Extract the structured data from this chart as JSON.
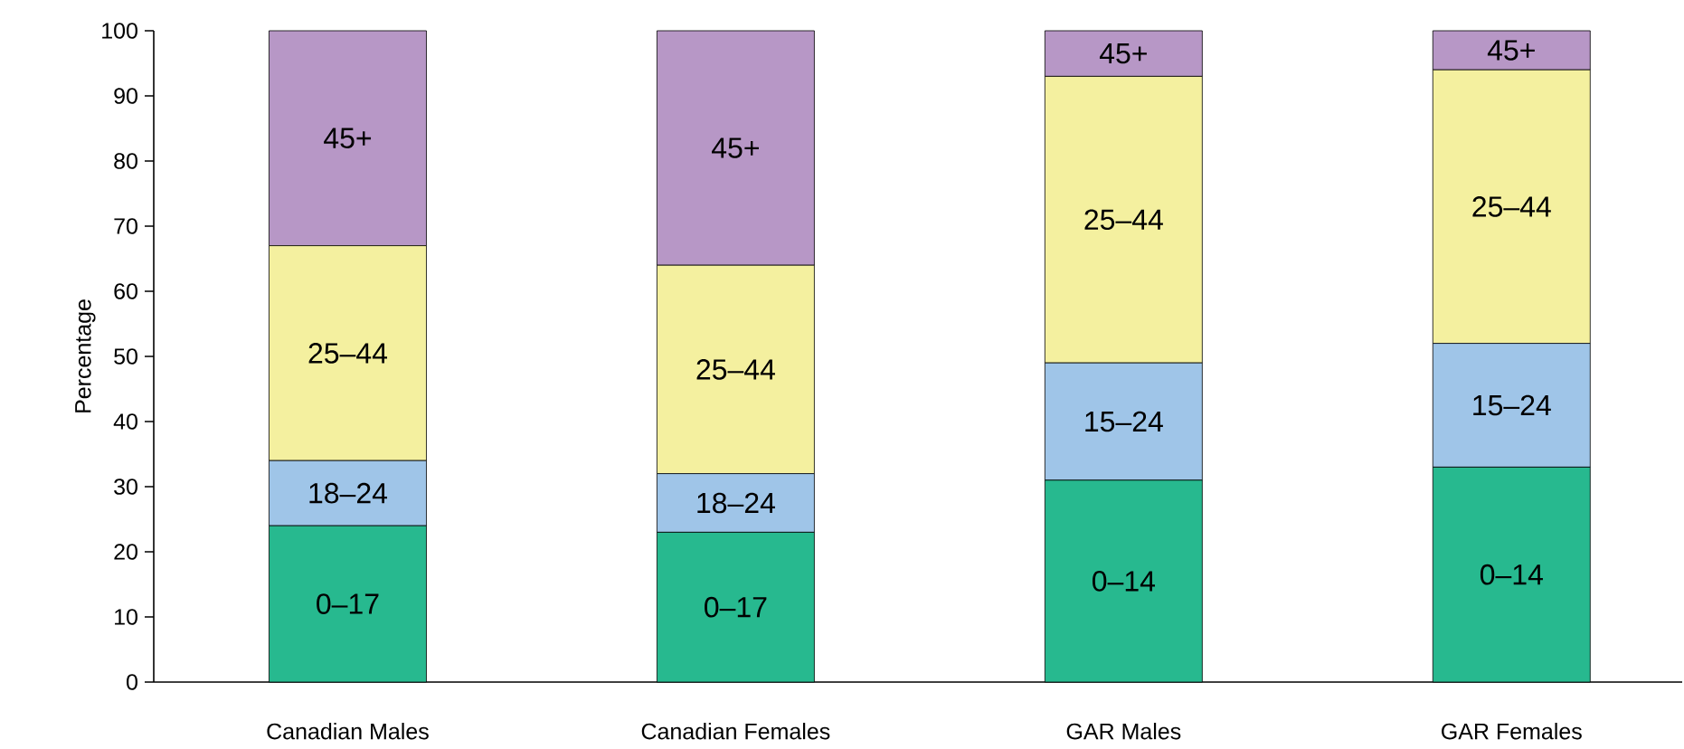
{
  "chart_data": {
    "type": "bar",
    "stacked": true,
    "ylabel": "Percentage",
    "categories": [
      "Canadian Males",
      "Canadian Females",
      "GAR Males",
      "GAR Females"
    ],
    "series": [
      {
        "color": "#27b98f",
        "values": [
          24,
          23,
          31,
          33
        ],
        "value_labels": [
          "0–17",
          "0–17",
          "0–14",
          "0–14"
        ]
      },
      {
        "color": "#9fc5e8",
        "values": [
          10,
          9,
          18,
          19
        ],
        "value_labels": [
          "18–24",
          "18–24",
          "15–24",
          "15–24"
        ]
      },
      {
        "color": "#f4f09f",
        "values": [
          33,
          32,
          44,
          42
        ],
        "value_labels": [
          "25–44",
          "25–44",
          "25–44",
          "25–44"
        ]
      },
      {
        "color": "#b797c6",
        "values": [
          33,
          36,
          7,
          6
        ],
        "value_labels": [
          "45+",
          "45+",
          "45+",
          "45+"
        ]
      }
    ],
    "ylim": [
      0,
      100
    ],
    "yticks": [
      0,
      10,
      20,
      30,
      40,
      50,
      60,
      70,
      80,
      90,
      100
    ],
    "grid": false
  }
}
